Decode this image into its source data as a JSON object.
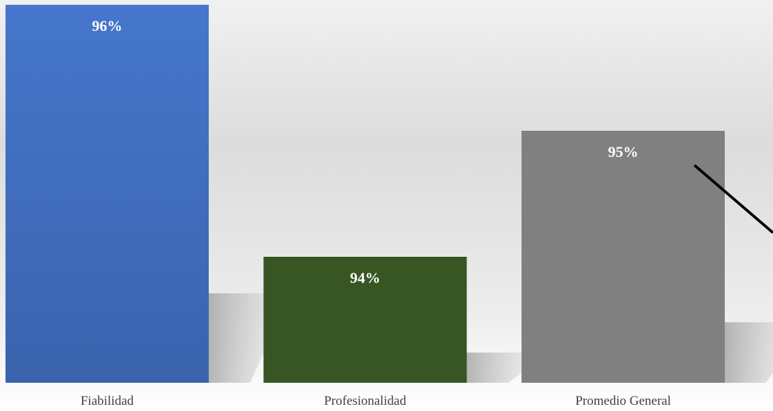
{
  "chart_data": {
    "type": "bar",
    "categories": [
      "Fiabilidad",
      "Profesionalidad",
      "Promedio General"
    ],
    "values": [
      96,
      94,
      95
    ],
    "data_labels": [
      "96%",
      "94%",
      "95%"
    ],
    "title": "",
    "xlabel": "",
    "ylabel": "",
    "ylim": [
      93.0,
      96.0
    ],
    "unit": "%",
    "grid": false,
    "legend": "none",
    "colors": [
      "#4472C4",
      "#375623",
      "#808080"
    ],
    "background": [
      "#ffffff",
      "#d9d9d9",
      "#ffffff"
    ]
  }
}
